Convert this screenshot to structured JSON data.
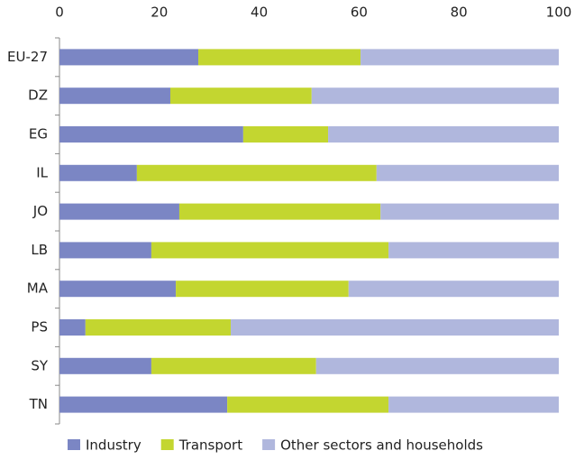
{
  "chart_data": {
    "type": "stacked_barh",
    "categories": [
      "EU-27",
      "DZ",
      "EG",
      "IL",
      "JO",
      "LB",
      "MA",
      "PS",
      "SY",
      "TN"
    ],
    "series": [
      {
        "name": "Industry",
        "color": "#7b86c4",
        "values": [
          27.8,
          22.2,
          36.8,
          15.5,
          24,
          18.4,
          23.3,
          5.2,
          18.4,
          33.6
        ]
      },
      {
        "name": "Transport",
        "color": "#c3d630",
        "values": [
          32.5,
          28.3,
          17,
          48,
          40.3,
          47.5,
          34.6,
          29.1,
          33,
          32.3
        ]
      },
      {
        "name": "Other sectors and households",
        "color": "#b0b7dd",
        "values": [
          39.7,
          49.5,
          46.2,
          36.5,
          35.7,
          34.1,
          42.1,
          65.7,
          48.6,
          34.1
        ]
      }
    ],
    "xlim": [
      0,
      100
    ],
    "xticks": [
      0,
      20,
      40,
      60,
      80,
      100
    ],
    "grid": false,
    "legend": "bottom"
  }
}
